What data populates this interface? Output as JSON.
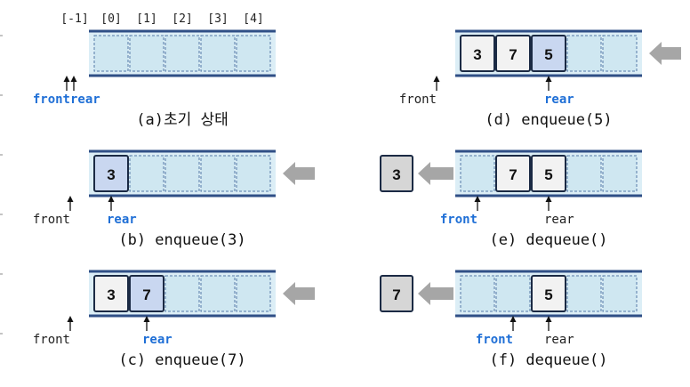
{
  "colors": {
    "band_fill": "#dceef6",
    "band_line": "#2f4f86",
    "cell_dash": "#557aa8",
    "empty_cell": "#cfe7f1",
    "filled_cell": "#f2f2f2",
    "rear_cell": "#c9d7f0",
    "pointer_blue": "#1f6fd6",
    "pointer_black": "#222222",
    "arrow_gray": "#a6a6a6",
    "out_box": "#d6d6d6"
  },
  "index_labels": [
    "[-1]",
    "[0]",
    "[1]",
    "[2]",
    "[3]",
    "[4]"
  ],
  "panels": [
    {
      "id": "a",
      "caption": "(a)초기 상태",
      "cells": [
        "",
        "",
        "",
        "",
        ""
      ],
      "rear_index": -1,
      "front_index": -1,
      "front": {
        "label": "front",
        "active": true
      },
      "rear": {
        "label": "rear",
        "active": true
      },
      "incoming": false,
      "outgoing": null
    },
    {
      "id": "b",
      "caption": "(b) enqueue(3)",
      "cells": [
        "3",
        "",
        "",
        "",
        ""
      ],
      "rear_index": 0,
      "front_index": -1,
      "front": {
        "label": "front",
        "active": false
      },
      "rear": {
        "label": "rear",
        "active": true
      },
      "incoming": true,
      "outgoing": null
    },
    {
      "id": "c",
      "caption": "(c) enqueue(7)",
      "cells": [
        "3",
        "7",
        "",
        "",
        ""
      ],
      "rear_index": 1,
      "front_index": -1,
      "front": {
        "label": "front",
        "active": false
      },
      "rear": {
        "label": "rear",
        "active": true
      },
      "incoming": true,
      "outgoing": null
    },
    {
      "id": "d",
      "caption": "(d) enqueue(5)",
      "cells": [
        "3",
        "7",
        "5",
        "",
        ""
      ],
      "rear_index": 2,
      "front_index": -1,
      "front": {
        "label": "front",
        "active": false
      },
      "rear": {
        "label": "rear",
        "active": true
      },
      "incoming": true,
      "outgoing": null
    },
    {
      "id": "e",
      "caption": "(e) dequeue()",
      "cells": [
        "",
        "7",
        "5",
        "",
        ""
      ],
      "rear_index": 2,
      "front_index": 0,
      "front": {
        "label": "front",
        "active": true
      },
      "rear": {
        "label": "rear",
        "active": false
      },
      "incoming": false,
      "outgoing": "3"
    },
    {
      "id": "f",
      "caption": "(f) dequeue()",
      "cells": [
        "",
        "",
        "5",
        "",
        ""
      ],
      "rear_index": 2,
      "front_index": 1,
      "front": {
        "label": "front",
        "active": true
      },
      "rear": {
        "label": "rear",
        "active": false
      },
      "incoming": false,
      "outgoing": "7"
    }
  ]
}
